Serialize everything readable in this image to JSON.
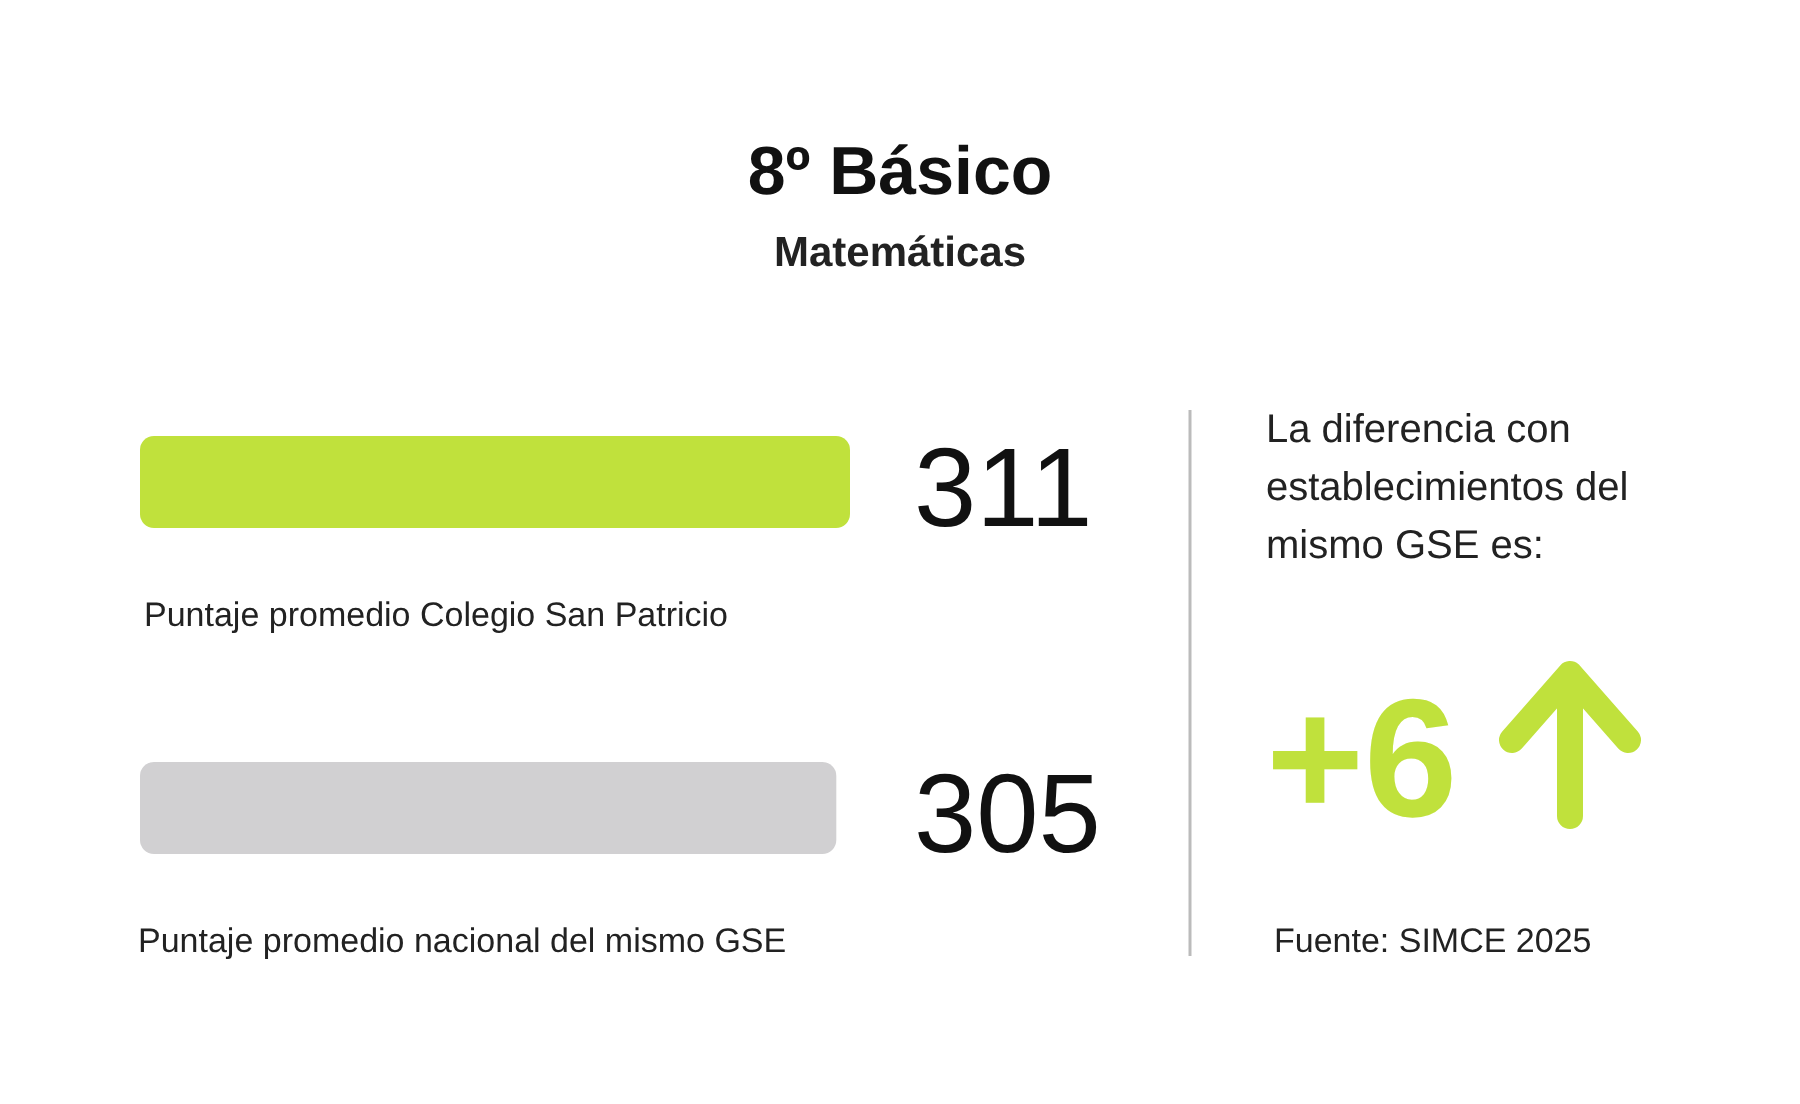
{
  "chart_data": {
    "type": "bar",
    "orientation": "horizontal",
    "title": "8º Básico",
    "subtitle": "Matemáticas",
    "categories": [
      "Puntaje promedio Colegio San Patricio",
      "Puntaje promedio nacional del mismo GSE"
    ],
    "values": [
      311,
      305
    ],
    "colors": [
      "#c0e13c",
      "#d1d0d2"
    ],
    "data_labels": true,
    "annotations": [
      "La diferencia con establecimientos del mismo GSE es:",
      "+6",
      "Fuente: SIMCE 2025"
    ]
  }
}
